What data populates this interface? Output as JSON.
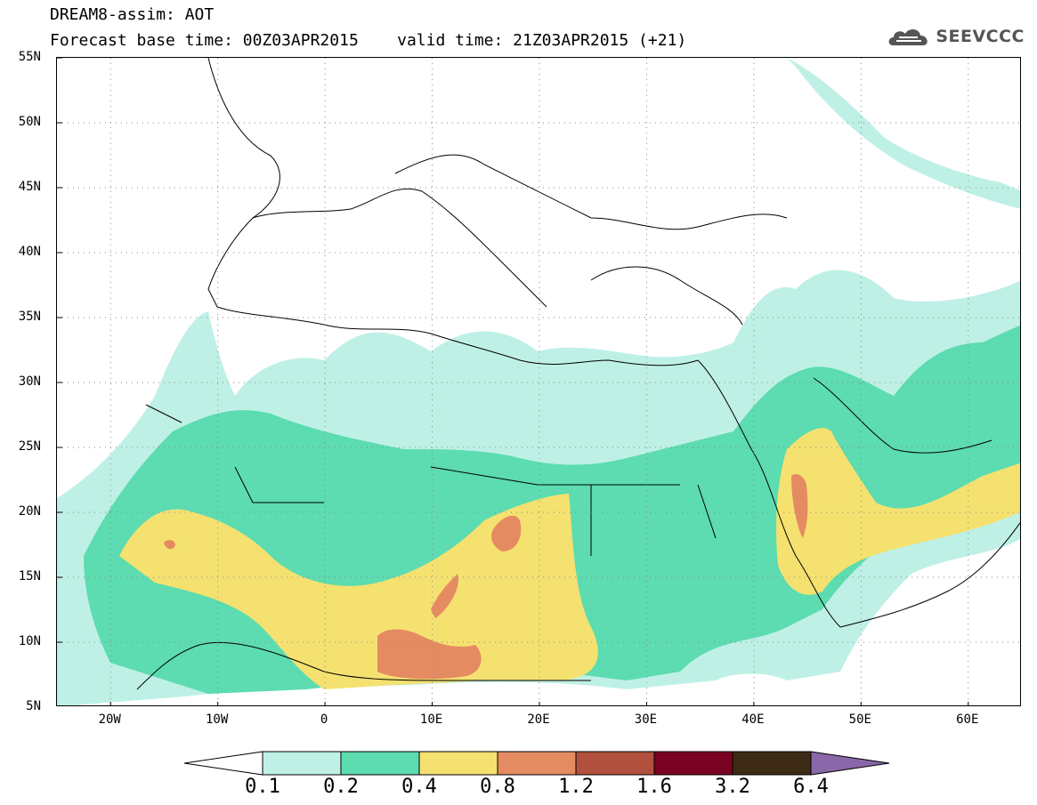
{
  "header": {
    "line1": "DREAM8-assim: AOT",
    "line2": "Forecast base time: 00Z03APR2015    valid time: 21Z03APR2015 (+21)"
  },
  "logo": {
    "icon": "cloud-logo-icon",
    "text": "SEEVCCC"
  },
  "map": {
    "lon_range": [
      -25,
      65
    ],
    "lat_range": [
      5,
      55
    ],
    "lat_labels": [
      "55N",
      "50N",
      "45N",
      "40N",
      "35N",
      "30N",
      "25N",
      "20N",
      "15N",
      "10N",
      "5N"
    ],
    "lon_labels": [
      "20W",
      "10W",
      "0",
      "10E",
      "20E",
      "30E",
      "40E",
      "50E",
      "60E"
    ],
    "grid": "dotted"
  },
  "legend": {
    "levels": [
      "0.1",
      "0.2",
      "0.4",
      "0.8",
      "1.2",
      "1.6",
      "3.2",
      "6.4"
    ],
    "colors": [
      "#ffffff",
      "#bff0e6",
      "#5cdcb0",
      "#f5e170",
      "#e58b62",
      "#b2503e",
      "#7a0222",
      "#3d2a14",
      "#8a67a8"
    ]
  }
}
